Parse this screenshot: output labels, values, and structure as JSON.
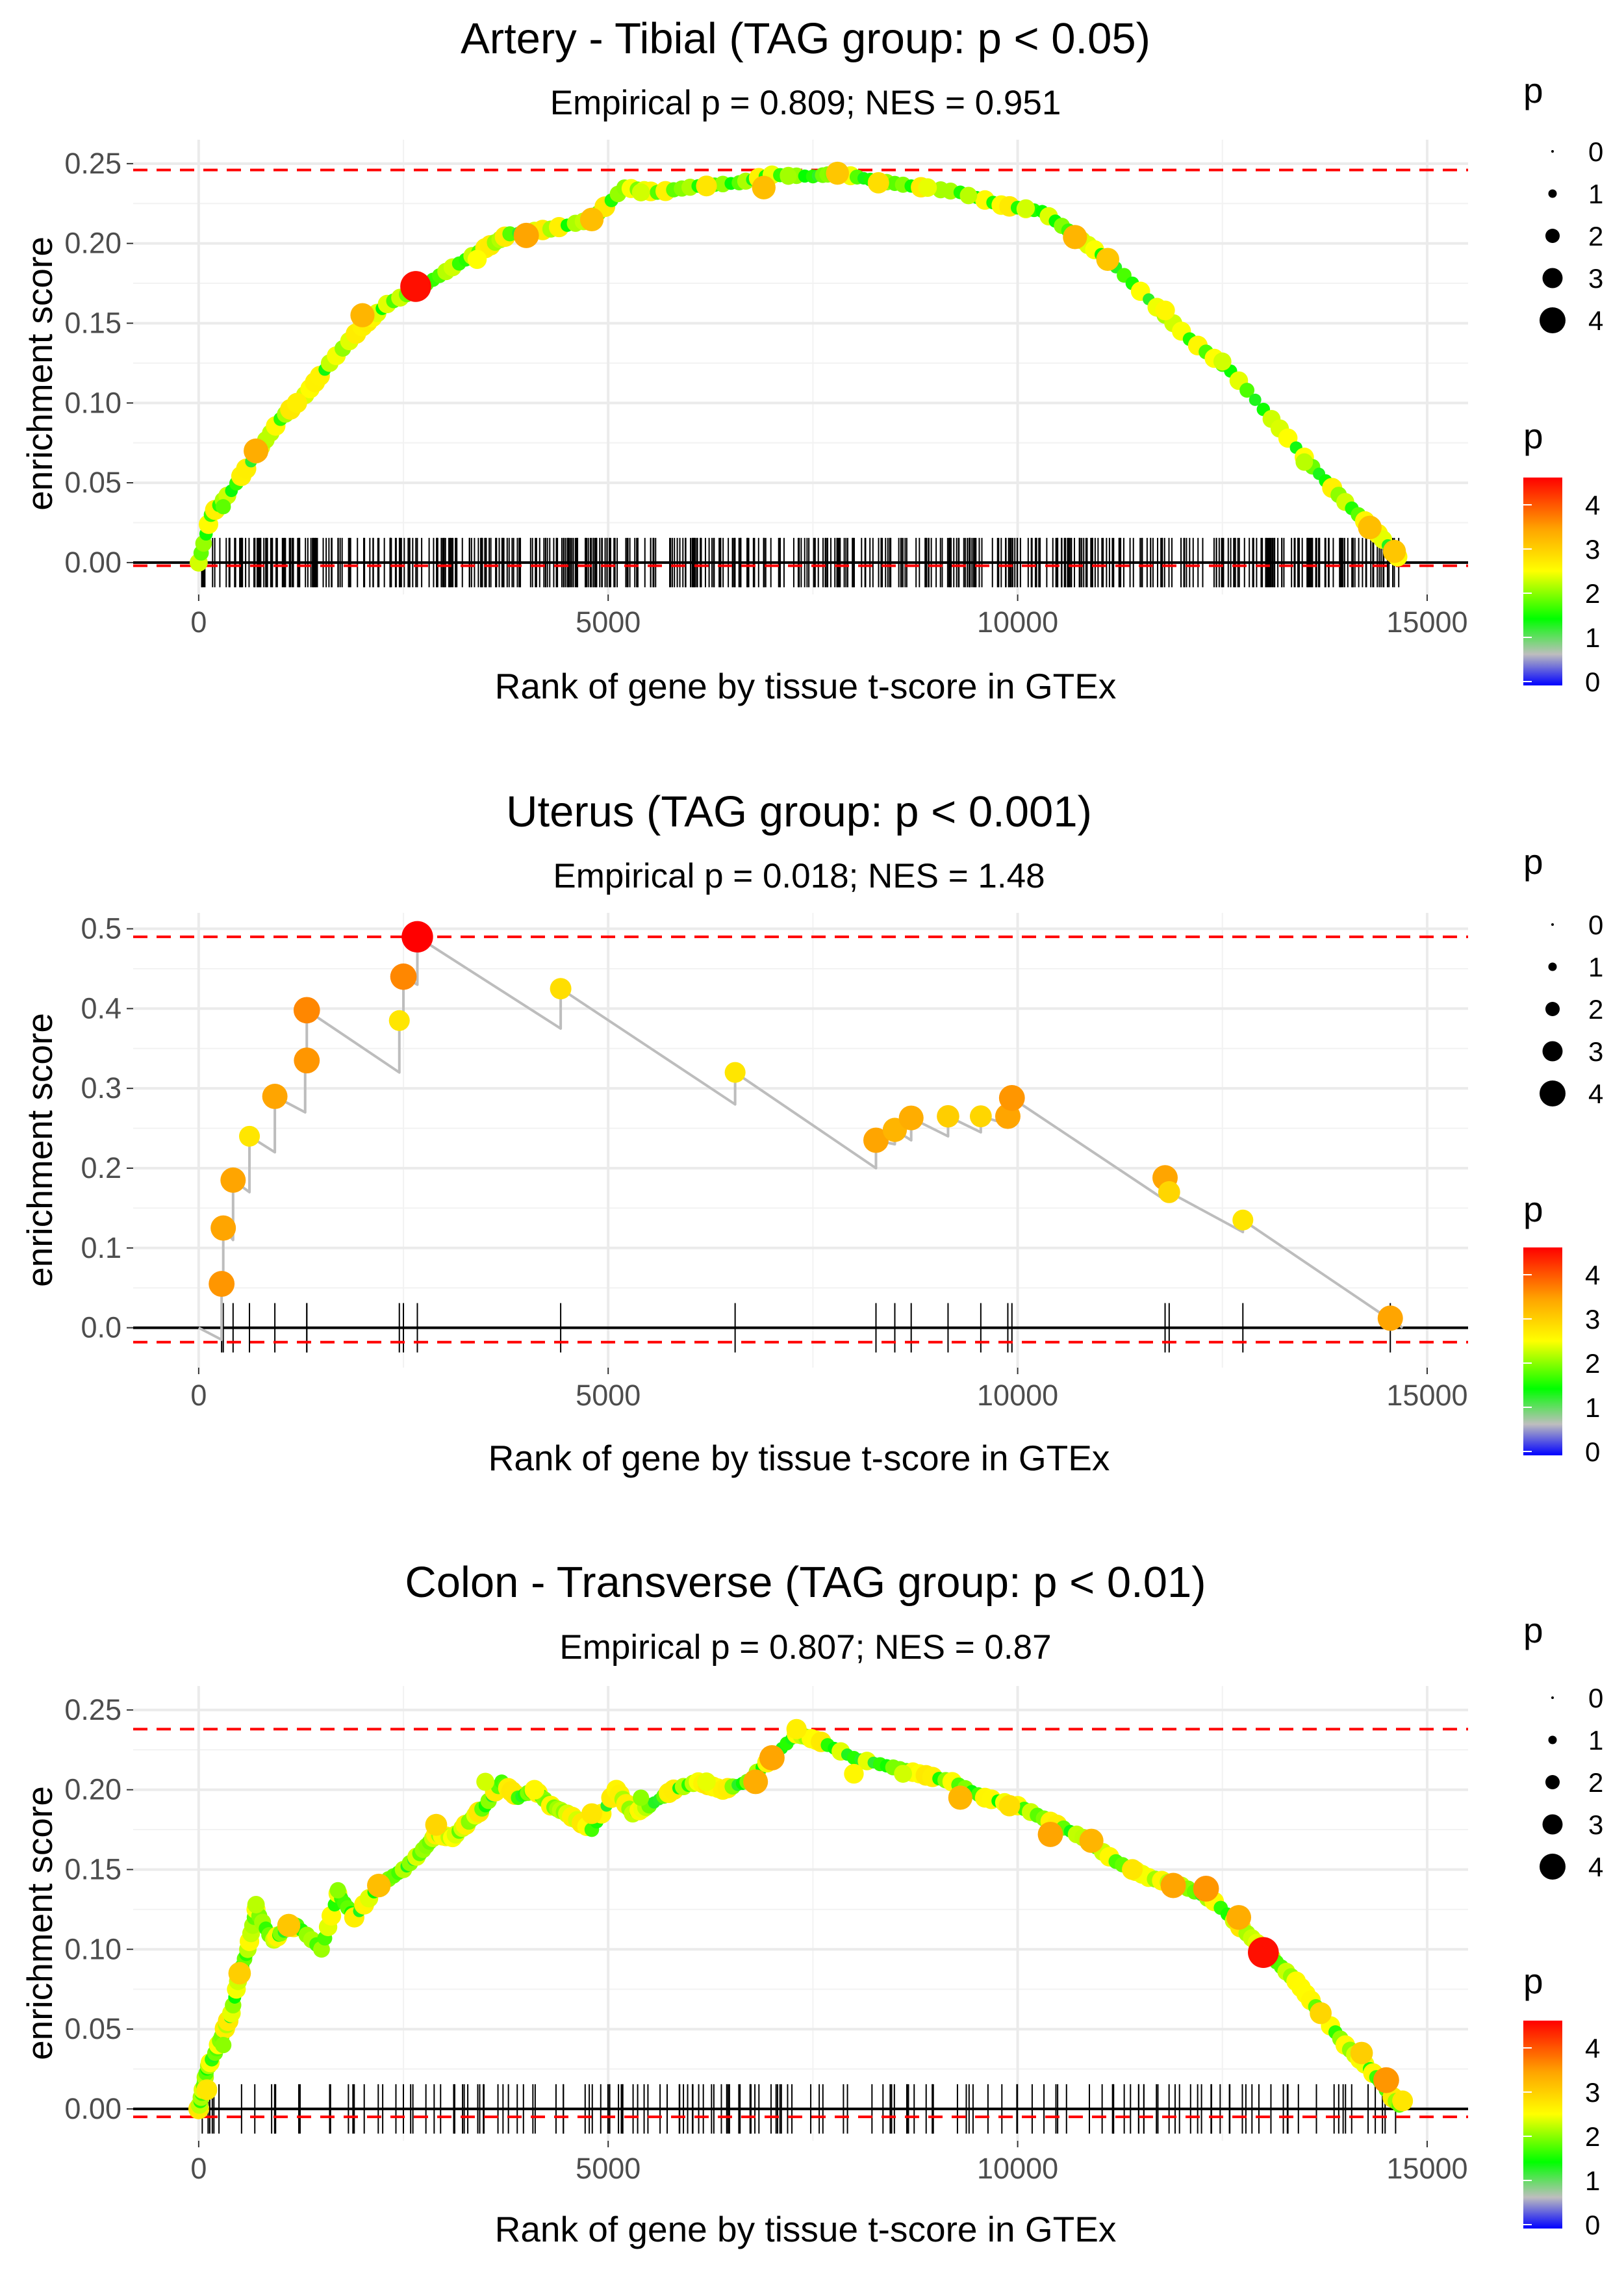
{
  "legend": {
    "size_title": "p",
    "size_labels": [
      "0",
      "1",
      "2",
      "3",
      "4"
    ],
    "color_title": "p",
    "color_labels": [
      "4",
      "3",
      "2",
      "1",
      "0"
    ],
    "color_stops": [
      "#ff0000",
      "#ffa500",
      "#ffff00",
      "#00ff00",
      "#bebebe",
      "#0000ff"
    ]
  },
  "chart_data": [
    {
      "type": "scatter",
      "title": "Artery - Tibial (TAG group: p < 0.05)",
      "subtitle": "Empirical p = 0.809; NES = 0.951",
      "xlabel": "Rank of gene by tissue t-score in GTEx",
      "ylabel": "enrichment score",
      "xlim": [
        -800,
        15500
      ],
      "ylim": [
        -0.02,
        0.265
      ],
      "xticks": [
        0,
        5000,
        10000,
        15000
      ],
      "xtick_labels": [
        "0",
        "5000",
        "10000",
        "15000"
      ],
      "yticks": [
        0,
        0.05,
        0.1,
        0.15,
        0.2,
        0.25
      ],
      "ytick_labels": [
        "0.00",
        "0.05",
        "0.10",
        "0.15",
        "0.20",
        "0.25"
      ],
      "max_line": 0.246,
      "min_line": -0.002,
      "rug_count": 560,
      "series": [
        {
          "name": "running ES curve",
          "x": [
            0,
            150,
            400,
            700,
            1000,
            1300,
            1600,
            2000,
            2300,
            2700,
            3100,
            3500,
            3800,
            4300,
            4800,
            5200,
            5600,
            6100,
            6600,
            7000,
            7500,
            7800,
            8200,
            8700,
            9300,
            9800,
            10300,
            10700,
            11100,
            11600,
            12100,
            12600,
            13100,
            13600,
            14000,
            14400,
            14700
          ],
          "y": [
            0.0,
            0.03,
            0.045,
            0.068,
            0.09,
            0.105,
            0.125,
            0.148,
            0.162,
            0.172,
            0.185,
            0.197,
            0.206,
            0.209,
            0.215,
            0.235,
            0.232,
            0.236,
            0.238,
            0.243,
            0.242,
            0.244,
            0.24,
            0.236,
            0.232,
            0.224,
            0.22,
            0.205,
            0.19,
            0.165,
            0.14,
            0.12,
            0.09,
            0.06,
            0.038,
            0.018,
            0.0
          ]
        },
        {
          "name": "hit points (rank, ES, p)",
          "points": [
            [
              300,
              0.035,
              1.8
            ],
            [
              700,
              0.07,
              3.5
            ],
            [
              1200,
              0.1,
              2.7
            ],
            [
              2000,
              0.155,
              3.4
            ],
            [
              2650,
              0.173,
              4.6
            ],
            [
              3400,
              0.19,
              2.5
            ],
            [
              4000,
              0.205,
              3.6
            ],
            [
              4800,
              0.215,
              3.3
            ],
            [
              5400,
              0.232,
              2.3
            ],
            [
              6200,
              0.236,
              2.8
            ],
            [
              6900,
              0.235,
              3.3
            ],
            [
              7200,
              0.242,
              2.1
            ],
            [
              7800,
              0.244,
              3.2
            ],
            [
              8300,
              0.238,
              2.9
            ],
            [
              8900,
              0.235,
              2.4
            ],
            [
              9400,
              0.23,
              2.2
            ],
            [
              10100,
              0.222,
              2.3
            ],
            [
              10700,
              0.204,
              3.4
            ],
            [
              11100,
              0.19,
              3.2
            ],
            [
              11800,
              0.158,
              2.6
            ],
            [
              12500,
              0.126,
              2.3
            ],
            [
              13500,
              0.063,
              2.2
            ],
            [
              14300,
              0.022,
              3.3
            ],
            [
              14600,
              0.007,
              3.2
            ]
          ]
        }
      ]
    },
    {
      "type": "scatter",
      "title": "Uterus (TAG group: p < 0.001)",
      "subtitle": "Empirical p = 0.018; NES = 1.48",
      "xlabel": "Rank of gene by tissue t-score in GTEx",
      "ylabel": "enrichment score",
      "xlim": [
        -800,
        15500
      ],
      "ylim": [
        -0.05,
        0.52
      ],
      "xticks": [
        0,
        5000,
        10000,
        15000
      ],
      "xtick_labels": [
        "0",
        "5000",
        "10000",
        "15000"
      ],
      "yticks": [
        0,
        0.1,
        0.2,
        0.3,
        0.4,
        0.5
      ],
      "ytick_labels": [
        "0.0",
        "0.1",
        "0.2",
        "0.3",
        "0.4",
        "0.5"
      ],
      "max_line": 0.49,
      "min_line": -0.018,
      "series": [
        {
          "name": "running ES curve",
          "x": [
            0,
            280,
            280,
            300,
            300,
            420,
            420,
            620,
            620,
            930,
            930,
            1300,
            1300,
            1320,
            1320,
            2450,
            2450,
            2500,
            2500,
            2670,
            2670,
            4420,
            4420,
            6550,
            6550,
            8270,
            8270,
            8500,
            8500,
            8700,
            8700,
            9150,
            9150,
            9550,
            9550,
            9880,
            9880,
            9930,
            9930,
            11800,
            11800,
            11850,
            11850,
            12750,
            12750,
            14550,
            14550,
            14700
          ],
          "y": [
            0.0,
            -0.015,
            0.055,
            0.045,
            0.125,
            0.11,
            0.185,
            0.17,
            0.24,
            0.22,
            0.29,
            0.27,
            0.335,
            0.335,
            0.398,
            0.32,
            0.385,
            0.38,
            0.44,
            0.43,
            0.49,
            0.375,
            0.425,
            0.28,
            0.32,
            0.2,
            0.235,
            0.23,
            0.248,
            0.235,
            0.263,
            0.24,
            0.265,
            0.245,
            0.265,
            0.255,
            0.265,
            0.265,
            0.288,
            0.16,
            0.188,
            0.17,
            0.17,
            0.12,
            0.135,
            0.01,
            0.012,
            0.0
          ]
        },
        {
          "name": "hit points (rank, ES, p)",
          "points": [
            [
              280,
              0.055,
              3.7
            ],
            [
              300,
              0.125,
              3.6
            ],
            [
              420,
              0.185,
              3.6
            ],
            [
              620,
              0.24,
              2.8
            ],
            [
              930,
              0.29,
              3.6
            ],
            [
              1320,
              0.335,
              3.7
            ],
            [
              1320,
              0.398,
              3.8
            ],
            [
              2450,
              0.385,
              2.8
            ],
            [
              2500,
              0.44,
              3.8
            ],
            [
              2670,
              0.49,
              4.7
            ],
            [
              4420,
              0.425,
              2.9
            ],
            [
              6550,
              0.32,
              2.8
            ],
            [
              8270,
              0.235,
              3.6
            ],
            [
              8500,
              0.248,
              3.4
            ],
            [
              8700,
              0.263,
              3.5
            ],
            [
              9150,
              0.265,
              3.1
            ],
            [
              9550,
              0.265,
              3.0
            ],
            [
              9880,
              0.265,
              3.6
            ],
            [
              9930,
              0.288,
              3.7
            ],
            [
              11800,
              0.188,
              3.6
            ],
            [
              11850,
              0.17,
              3.0
            ],
            [
              12750,
              0.135,
              2.8
            ],
            [
              14550,
              0.012,
              3.6
            ]
          ]
        }
      ]
    },
    {
      "type": "scatter",
      "title": "Colon - Transverse (TAG group: p < 0.01)",
      "subtitle": "Empirical p = 0.807; NES = 0.87",
      "xlabel": "Rank of gene by tissue t-score in GTEx",
      "ylabel": "enrichment score",
      "xlim": [
        -800,
        15500
      ],
      "ylim": [
        -0.02,
        0.265
      ],
      "xticks": [
        0,
        5000,
        10000,
        15000
      ],
      "xtick_labels": [
        "0",
        "5000",
        "10000",
        "15000"
      ],
      "yticks": [
        0,
        0.05,
        0.1,
        0.15,
        0.2,
        0.25
      ],
      "ytick_labels": [
        "0.00",
        "0.05",
        "0.10",
        "0.15",
        "0.20",
        "0.25"
      ],
      "max_line": 0.238,
      "min_line": -0.005,
      "rug_count": 170,
      "series": [
        {
          "name": "running ES curve",
          "x": [
            0,
            50,
            100,
            200,
            300,
            400,
            500,
            600,
            700,
            900,
            1000,
            1200,
            1500,
            1700,
            1900,
            2200,
            2500,
            2700,
            2900,
            3100,
            3300,
            3500,
            3700,
            3900,
            4100,
            4300,
            4500,
            4800,
            5100,
            5300,
            5500,
            5800,
            6100,
            6400,
            6700,
            7000,
            7300,
            7600,
            8000,
            8400,
            8800,
            9200,
            9600,
            10000,
            10400,
            10800,
            11200,
            11600,
            12000,
            12400,
            12800,
            13100,
            13400,
            13700,
            14000,
            14300,
            14500,
            14700
          ],
          "y": [
            0.0,
            0.012,
            0.025,
            0.035,
            0.048,
            0.06,
            0.085,
            0.1,
            0.125,
            0.105,
            0.11,
            0.115,
            0.1,
            0.135,
            0.12,
            0.14,
            0.15,
            0.16,
            0.172,
            0.17,
            0.18,
            0.19,
            0.205,
            0.195,
            0.2,
            0.19,
            0.185,
            0.175,
            0.2,
            0.185,
            0.19,
            0.2,
            0.205,
            0.2,
            0.205,
            0.22,
            0.235,
            0.23,
            0.22,
            0.215,
            0.21,
            0.205,
            0.195,
            0.19,
            0.18,
            0.17,
            0.155,
            0.145,
            0.14,
            0.13,
            0.11,
            0.095,
            0.08,
            0.06,
            0.04,
            0.025,
            0.012,
            0.0
          ]
        },
        {
          "name": "hit points (rank, ES, p)",
          "points": [
            [
              100,
              0.012,
              2.8
            ],
            [
              300,
              0.04,
              2.0
            ],
            [
              500,
              0.085,
              3.1
            ],
            [
              700,
              0.128,
              2.2
            ],
            [
              1100,
              0.115,
              3.2
            ],
            [
              1700,
              0.137,
              2.0
            ],
            [
              2200,
              0.14,
              3.3
            ],
            [
              2900,
              0.178,
              3.0
            ],
            [
              3500,
              0.205,
              2.3
            ],
            [
              4100,
              0.2,
              2.6
            ],
            [
              4800,
              0.185,
              2.8
            ],
            [
              5400,
              0.195,
              2.0
            ],
            [
              6200,
              0.205,
              2.4
            ],
            [
              6800,
              0.205,
              3.5
            ],
            [
              7000,
              0.22,
              3.6
            ],
            [
              7300,
              0.238,
              2.7
            ],
            [
              8000,
              0.21,
              2.6
            ],
            [
              8600,
              0.21,
              2.3
            ],
            [
              9300,
              0.195,
              3.4
            ],
            [
              9900,
              0.19,
              2.9
            ],
            [
              10400,
              0.172,
              3.6
            ],
            [
              10900,
              0.168,
              3.4
            ],
            [
              11400,
              0.15,
              2.8
            ],
            [
              11900,
              0.14,
              3.6
            ],
            [
              12300,
              0.138,
              3.7
            ],
            [
              12700,
              0.12,
              3.5
            ],
            [
              13000,
              0.098,
              4.6
            ],
            [
              13700,
              0.06,
              3.0
            ],
            [
              14200,
              0.035,
              3.1
            ],
            [
              14500,
              0.018,
              3.7
            ],
            [
              14700,
              0.005,
              2.8
            ]
          ]
        }
      ]
    }
  ]
}
